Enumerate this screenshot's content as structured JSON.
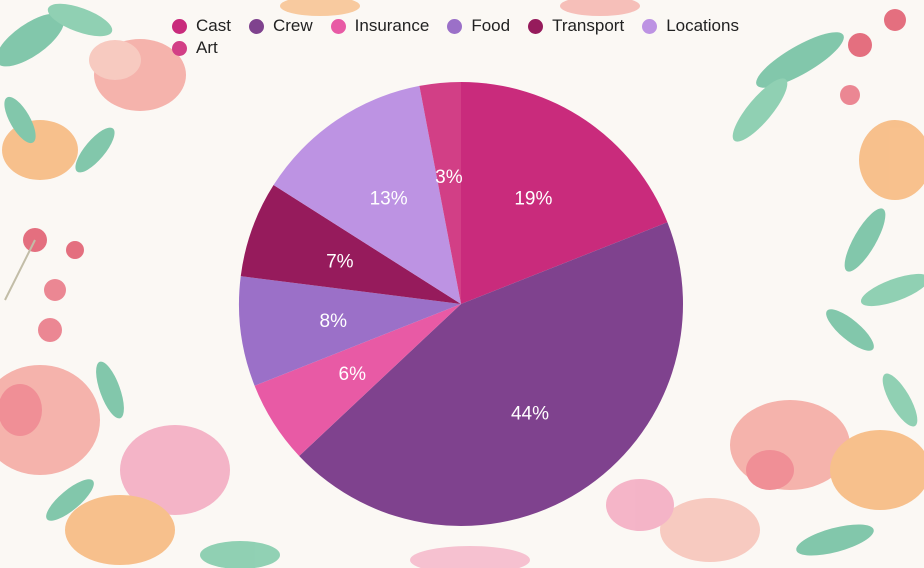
{
  "chart_data": {
    "type": "pie",
    "title": "",
    "categories": [
      "Cast",
      "Crew",
      "Insurance",
      "Food",
      "Transport",
      "Locations",
      "Art"
    ],
    "values": [
      19,
      44,
      6,
      8,
      7,
      13,
      3
    ],
    "value_labels": [
      "19%",
      "44%",
      "6%",
      "8%",
      "7%",
      "13%",
      "3%"
    ],
    "colors": [
      "#c92b7c",
      "#7f428e",
      "#e85aa5",
      "#9b70c8",
      "#961b5c",
      "#bd93e3",
      "#d23f86"
    ],
    "start_angle_deg": 0,
    "direction": "clockwise",
    "legend": {
      "placement": "top",
      "marker": "circle"
    }
  },
  "decor": {
    "leaf_color": "#6ebf9f",
    "petal_color": "#f4a7a0",
    "petal_orange": "#f7b77a",
    "berry_color": "#e0586b"
  }
}
